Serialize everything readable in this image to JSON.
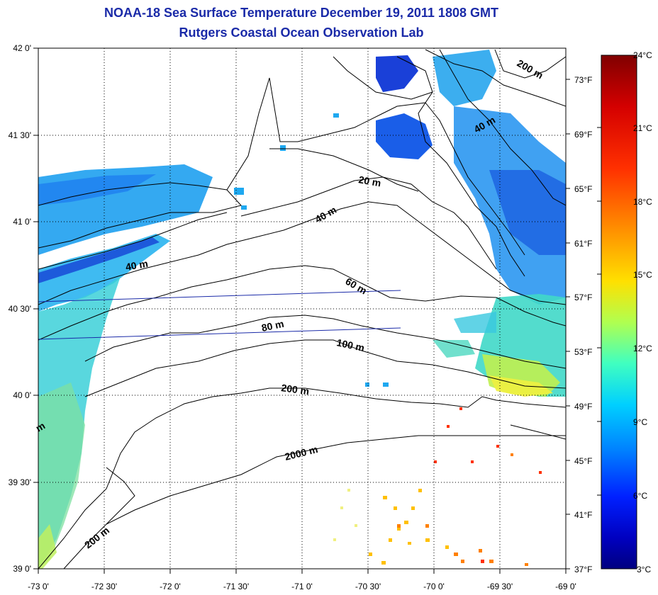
{
  "title": "NOAA-18 Sea Surface Temperature December 19, 2011 1808 GMT",
  "subtitle": "Rutgers Coastal Ocean Observation Lab",
  "map": {
    "lon_range": [
      -73,
      -69
    ],
    "lat_range": [
      39,
      42
    ],
    "lon_ticks": [
      "-73 0'",
      "-72 30'",
      "-72 0'",
      "-71 30'",
      "-71 0'",
      "-70 30'",
      "-70 0'",
      "-69 30'",
      "-69 0'"
    ],
    "lat_ticks": [
      "39 0'",
      "39 30'",
      "40 0'",
      "40 30'",
      "41 0'",
      "41 30'",
      "42 0'"
    ],
    "grid": "dotted",
    "depth_labels": [
      "20 m",
      "40 m",
      "40 m",
      "40 m",
      "60 m",
      "80 m",
      "100 m",
      "200 m",
      "200 m",
      "200 m",
      "2000 m",
      "m"
    ]
  },
  "colorbar": {
    "celsius_labels": [
      "24°C",
      "21°C",
      "18°C",
      "15°C",
      "12°C",
      "9°C",
      "6°C",
      "3°C"
    ],
    "fahrenheit_labels": [
      "73°F",
      "69°F",
      "65°F",
      "61°F",
      "57°F",
      "53°F",
      "49°F",
      "45°F",
      "41°F",
      "37°F"
    ],
    "colors": [
      "#800000",
      "#d40000",
      "#ff2a00",
      "#ff8000",
      "#ffd400",
      "#d4ff2a",
      "#80ff80",
      "#2affd4",
      "#00d4ff",
      "#0080ff",
      "#002aff",
      "#0000d4",
      "#000080"
    ]
  },
  "colors": {
    "title": "#1a2aa8",
    "land_outline": "#000000",
    "track_line": "#1a2aa8"
  }
}
